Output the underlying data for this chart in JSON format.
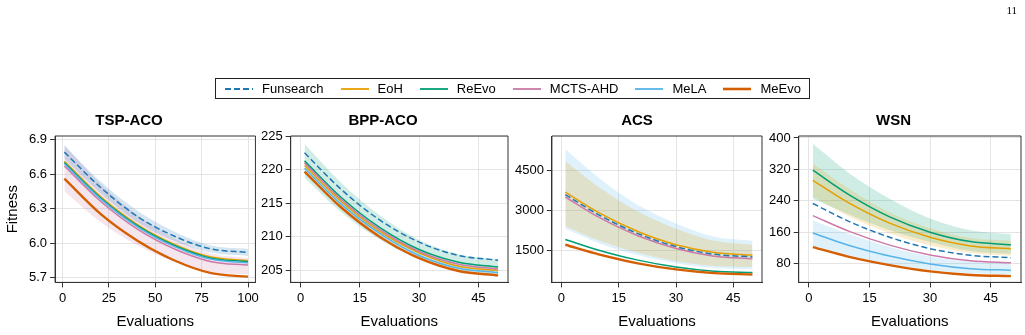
{
  "chart_data": [
    {
      "type": "line",
      "title": "TSP-ACO",
      "xlabel": "Evaluations",
      "ylabel": "Fitness",
      "xlim": [
        -4,
        104
      ],
      "xticks": [
        0,
        25,
        50,
        75,
        100
      ],
      "ylim": [
        5.66,
        6.93
      ],
      "yticks": [
        5.7,
        {
          "value": 6.0,
          "label": "6.0"
        },
        6.3,
        6.6,
        6.9
      ],
      "grid": true,
      "legend": "top",
      "annotations": [
        "11"
      ],
      "x": [
        1,
        20.8,
        40.6,
        60.4,
        80.2,
        100
      ],
      "series": [
        {
          "name": "Funsearch",
          "color": "#1f77b4",
          "line_style": "dashed",
          "values": [
            6.79,
            6.48,
            6.23,
            6.06,
            5.95,
            5.92
          ],
          "lower": [
            6.73,
            6.43,
            6.18,
            6.02,
            5.92,
            5.89
          ],
          "upper": [
            6.85,
            6.53,
            6.28,
            6.1,
            5.98,
            5.95
          ]
        },
        {
          "name": "EoH",
          "color": "#e69f00",
          "values": [
            6.71,
            6.4,
            6.16,
            5.99,
            5.88,
            5.85
          ]
        },
        {
          "name": "ReEvo",
          "color": "#009e73",
          "values": [
            6.7,
            6.39,
            6.15,
            5.98,
            5.87,
            5.84
          ]
        },
        {
          "name": "MCTS-AHD",
          "color": "#cc79a7",
          "values": [
            6.67,
            6.36,
            6.12,
            5.95,
            5.84,
            5.81
          ],
          "lower": [
            6.45,
            6.18,
            5.98,
            5.84,
            5.75,
            5.73
          ],
          "upper": [
            6.85,
            6.51,
            6.24,
            6.04,
            5.91,
            5.87
          ]
        },
        {
          "name": "MeLA",
          "color": "#56b4e9",
          "values": [
            6.69,
            6.38,
            6.14,
            5.97,
            5.86,
            5.83
          ]
        },
        {
          "name": "MeEvo",
          "color": "#d55e00",
          "values": [
            6.56,
            6.25,
            6.02,
            5.85,
            5.74,
            5.71
          ]
        }
      ]
    },
    {
      "type": "line",
      "title": "BPP-ACO",
      "xlabel": "Evaluations",
      "xlim": [
        -2.5,
        52.5
      ],
      "xticks": [
        0,
        15,
        30,
        45
      ],
      "ylim": [
        203.2,
        225
      ],
      "yticks": [
        205,
        210,
        215,
        220,
        225
      ],
      "grid": true,
      "x": [
        1,
        10,
        20,
        30,
        40,
        50
      ],
      "series": [
        {
          "name": "Funsearch",
          "color": "#1f77b4",
          "line_style": "dashed",
          "values": [
            222.5,
            217.2,
            212.5,
            209.2,
            207.2,
            206.5
          ]
        },
        {
          "name": "EoH",
          "color": "#e69f00",
          "values": [
            220.6,
            215.4,
            210.8,
            207.6,
            205.6,
            204.95
          ]
        },
        {
          "name": "ReEvo",
          "color": "#009e73",
          "values": [
            221.3,
            216.0,
            211.4,
            208.1,
            206.2,
            205.5
          ],
          "lower": [
            218.8,
            213.8,
            209.6,
            206.7,
            205.0,
            204.4
          ],
          "upper": [
            223.8,
            218.2,
            213.2,
            209.5,
            207.4,
            206.6
          ]
        },
        {
          "name": "MCTS-AHD",
          "color": "#cc79a7",
          "values": [
            221.0,
            215.7,
            211.1,
            207.8,
            205.9,
            205.2
          ]
        },
        {
          "name": "MeLA",
          "color": "#56b4e9",
          "values": [
            220.2,
            215.0,
            210.5,
            207.2,
            205.3,
            204.65
          ]
        },
        {
          "name": "MeEvo",
          "color": "#d55e00",
          "values": [
            219.7,
            214.5,
            210.0,
            206.8,
            204.9,
            204.25
          ]
        }
      ]
    },
    {
      "type": "line",
      "title": "ACS",
      "xlabel": "Evaluations",
      "xlim": [
        -2.5,
        52.5
      ],
      "xticks": [
        0,
        15,
        30,
        45
      ],
      "ylim": [
        280,
        5800
      ],
      "yticks": [
        1500,
        3000,
        4500
      ],
      "grid": true,
      "x": [
        1,
        10,
        20,
        30,
        40,
        50
      ],
      "series": [
        {
          "name": "Funsearch",
          "color": "#1f77b4",
          "line_style": "dashed",
          "values": [
            3590,
            2810,
            2120,
            1630,
            1340,
            1240
          ]
        },
        {
          "name": "EoH",
          "color": "#e69f00",
          "values": [
            3680,
            2890,
            2200,
            1700,
            1410,
            1310
          ],
          "lower": [
            2400,
            1850,
            1400,
            1080,
            900,
            860
          ],
          "upper": [
            4850,
            3850,
            2950,
            2300,
            1850,
            1700
          ]
        },
        {
          "name": "ReEvo",
          "color": "#009e73",
          "values": [
            1900,
            1480,
            1120,
            860,
            700,
            650
          ]
        },
        {
          "name": "MCTS-AHD",
          "color": "#cc79a7",
          "values": [
            3500,
            2720,
            2040,
            1560,
            1270,
            1170
          ]
        },
        {
          "name": "MeLA",
          "color": "#56b4e9",
          "values": [
            null,
            null,
            null,
            null,
            null,
            null
          ],
          "lower": [
            2300,
            1750,
            1300,
            1000,
            820,
            780
          ],
          "upper": [
            5300,
            4200,
            3200,
            2500,
            2000,
            1850
          ]
        },
        {
          "name": "MeEvo",
          "color": "#d55e00",
          "values": [
            1700,
            1330,
            1000,
            770,
            630,
            580
          ]
        }
      ]
    },
    {
      "type": "line",
      "title": "WSN",
      "xlabel": "Evaluations",
      "xlim": [
        -2.5,
        52.5
      ],
      "xticks": [
        0,
        15,
        30,
        45
      ],
      "ylim": [
        32,
        405
      ],
      "yticks": [
        80,
        160,
        240,
        320,
        400
      ],
      "grid": true,
      "x": [
        1,
        10,
        20,
        30,
        40,
        50
      ],
      "series": [
        {
          "name": "Funsearch",
          "color": "#1f77b4",
          "line_style": "dashed",
          "values": [
            233,
            187,
            147,
            118,
            101,
            95
          ]
        },
        {
          "name": "EoH",
          "color": "#e69f00",
          "values": [
            292,
            234,
            183,
            147,
            125,
            118
          ],
          "lower": [
            250,
            200,
            157,
            126,
            107,
            100
          ],
          "upper": [
            335,
            270,
            210,
            170,
            145,
            138
          ]
        },
        {
          "name": "ReEvo",
          "color": "#009e73",
          "values": [
            318,
            255,
            199,
            160,
            136,
            128
          ],
          "lower": [
            245,
            205,
            165,
            135,
            112,
            105
          ],
          "upper": [
            385,
            310,
            245,
            195,
            165,
            155
          ]
        },
        {
          "name": "MCTS-AHD",
          "color": "#cc79a7",
          "values": [
            202,
            162,
            127,
            102,
            87,
            82
          ]
        },
        {
          "name": "MeLA",
          "color": "#56b4e9",
          "values": [
            158,
            126,
            99,
            79,
            67,
            63
          ],
          "lower": [
            120,
            98,
            78,
            63,
            55,
            52
          ],
          "upper": [
            190,
            155,
            122,
            98,
            85,
            80
          ]
        },
        {
          "name": "MeEvo",
          "color": "#d55e00",
          "values": [
            122,
            97,
            76,
            60,
            51,
            48
          ]
        }
      ]
    }
  ]
}
